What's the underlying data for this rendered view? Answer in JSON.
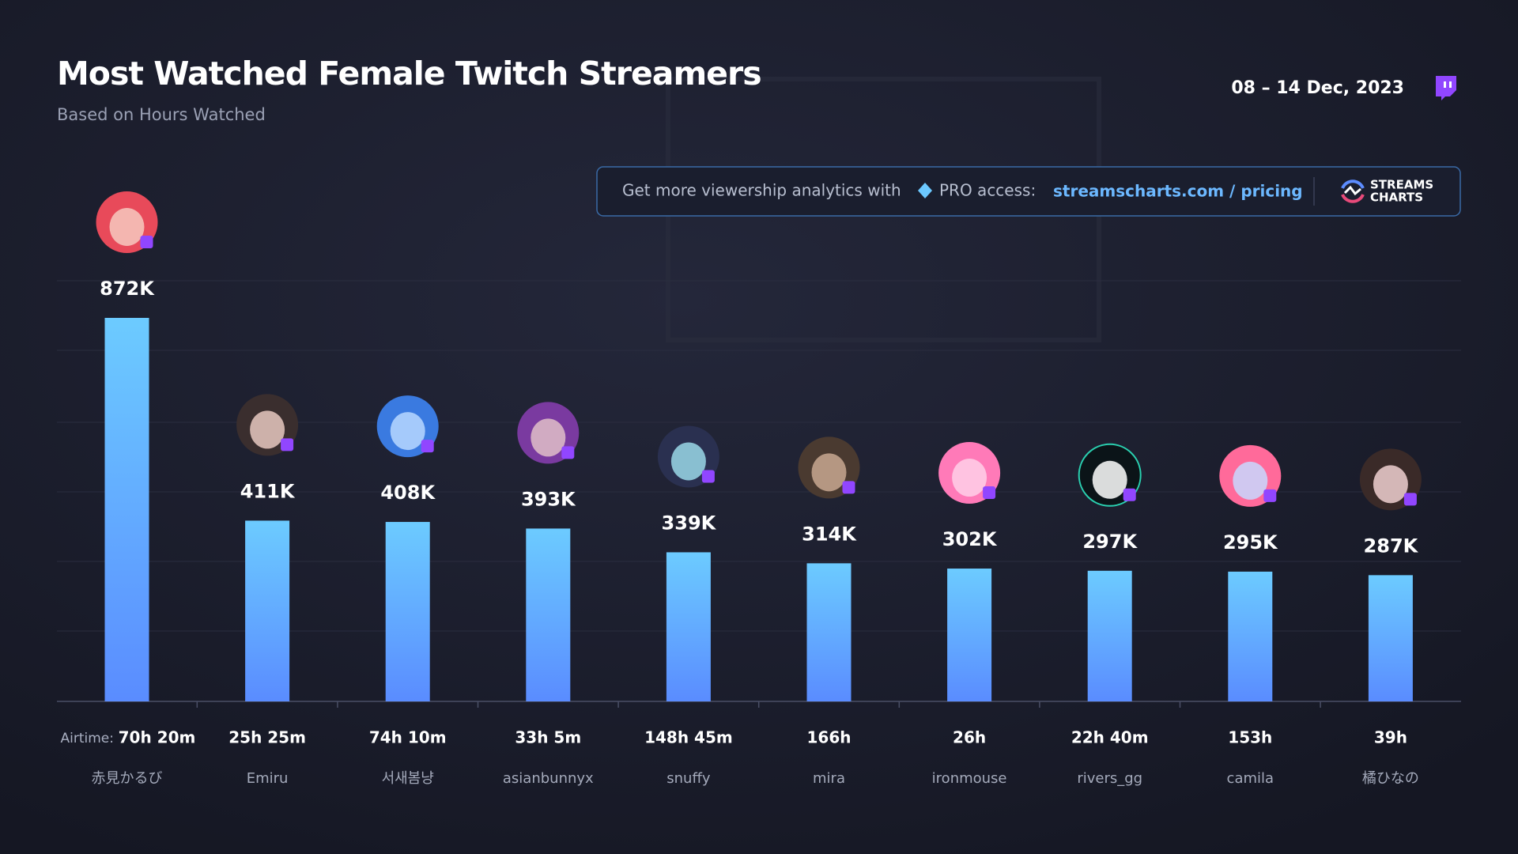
{
  "chart_data": {
    "type": "bar",
    "title": "Most Watched Female Twitch Streamers",
    "subtitle": "Based on Hours Watched",
    "date_range": "08 – 14 Dec, 2023",
    "banner": {
      "text": "Get more viewership analytics with",
      "pro": "PRO access:",
      "link": "streamscharts.com / pricing",
      "logo_line1": "STREAMS",
      "logo_line2": "CHARTS"
    },
    "airtime_title": "Airtime:",
    "categories": [
      "赤見かるび",
      "Emiru",
      "서새봄냥",
      "asianbunnyx",
      "snuffy",
      "mira",
      "ironmouse",
      "rivers_gg",
      "camila",
      "橘ひなの"
    ],
    "values": [
      872000,
      411000,
      408000,
      393000,
      339000,
      314000,
      302000,
      297000,
      295000,
      287000
    ],
    "value_labels": [
      "872K",
      "411K",
      "408K",
      "393K",
      "339K",
      "314K",
      "302K",
      "297K",
      "295K",
      "287K"
    ],
    "airtime": [
      "70h 20m",
      "25h 25m",
      "74h 10m",
      "33h 5m",
      "148h 45m",
      "166h",
      "26h",
      "22h 40m",
      "153h",
      "39h"
    ],
    "color": "#64b4ff"
  }
}
